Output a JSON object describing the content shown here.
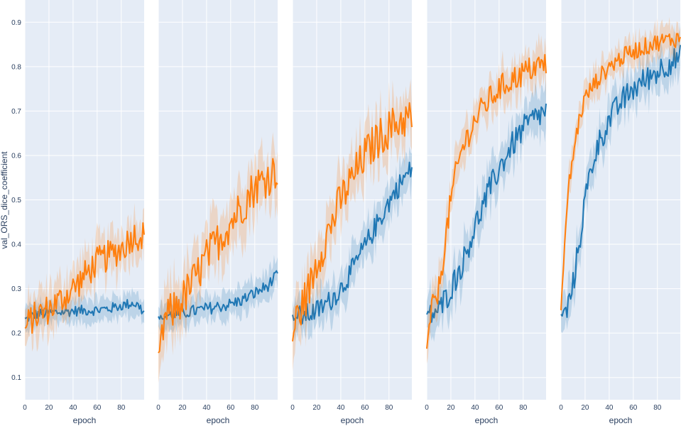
{
  "chart_data": {
    "type": "line",
    "ylabel": "val_ORS_dice_coefficient",
    "ylim": [
      0.05,
      0.95
    ],
    "yticks": [
      0.1,
      0.2,
      0.3,
      0.4,
      0.5,
      0.6,
      0.7,
      0.8,
      0.9
    ],
    "xlim": [
      0,
      99
    ],
    "xticks": [
      0,
      20,
      40,
      60,
      80
    ],
    "grid": true,
    "colors": {
      "plot_bg": "#e5ecf6",
      "grid": "#ffffff",
      "blue": "#1f77b4",
      "orange": "#ff7f0e"
    },
    "panels": [
      {
        "xlabel": "epoch",
        "series": [
          {
            "color": "#1f77b4",
            "band": 0.025,
            "noise": 0.012,
            "points": [
              [
                0,
                0.232
              ],
              [
                10,
                0.243
              ],
              [
                20,
                0.245
              ],
              [
                40,
                0.25
              ],
              [
                60,
                0.252
              ],
              [
                70,
                0.255
              ],
              [
                80,
                0.262
              ],
              [
                90,
                0.268
              ],
              [
                95,
                0.26
              ],
              [
                99,
                0.245
              ]
            ]
          },
          {
            "color": "#ff7f0e",
            "band": 0.045,
            "noise": 0.035,
            "points": [
              [
                0,
                0.21
              ],
              [
                5,
                0.23
              ],
              [
                10,
                0.24
              ],
              [
                20,
                0.255
              ],
              [
                30,
                0.275
              ],
              [
                40,
                0.3
              ],
              [
                50,
                0.33
              ],
              [
                60,
                0.36
              ],
              [
                70,
                0.375
              ],
              [
                80,
                0.39
              ],
              [
                90,
                0.42
              ],
              [
                99,
                0.42
              ]
            ]
          }
        ]
      },
      {
        "xlabel": "epoch",
        "series": [
          {
            "color": "#1f77b4",
            "band": 0.03,
            "noise": 0.014,
            "points": [
              [
                0,
                0.235
              ],
              [
                10,
                0.24
              ],
              [
                20,
                0.245
              ],
              [
                40,
                0.255
              ],
              [
                60,
                0.265
              ],
              [
                70,
                0.275
              ],
              [
                80,
                0.29
              ],
              [
                90,
                0.305
              ],
              [
                99,
                0.33
              ]
            ]
          },
          {
            "color": "#ff7f0e",
            "band": 0.06,
            "noise": 0.045,
            "points": [
              [
                0,
                0.145
              ],
              [
                3,
                0.2
              ],
              [
                6,
                0.235
              ],
              [
                10,
                0.245
              ],
              [
                20,
                0.275
              ],
              [
                30,
                0.32
              ],
              [
                40,
                0.37
              ],
              [
                50,
                0.41
              ],
              [
                60,
                0.45
              ],
              [
                70,
                0.49
              ],
              [
                80,
                0.53
              ],
              [
                90,
                0.55
              ],
              [
                99,
                0.57
              ]
            ]
          }
        ]
      },
      {
        "xlabel": "epoch",
        "series": [
          {
            "color": "#1f77b4",
            "band": 0.04,
            "noise": 0.025,
            "points": [
              [
                0,
                0.235
              ],
              [
                10,
                0.24
              ],
              [
                20,
                0.25
              ],
              [
                30,
                0.27
              ],
              [
                40,
                0.3
              ],
              [
                50,
                0.345
              ],
              [
                60,
                0.395
              ],
              [
                70,
                0.445
              ],
              [
                80,
                0.495
              ],
              [
                90,
                0.54
              ],
              [
                99,
                0.57
              ]
            ]
          },
          {
            "color": "#ff7f0e",
            "band": 0.055,
            "noise": 0.045,
            "points": [
              [
                0,
                0.185
              ],
              [
                3,
                0.23
              ],
              [
                8,
                0.26
              ],
              [
                15,
                0.31
              ],
              [
                20,
                0.36
              ],
              [
                30,
                0.43
              ],
              [
                40,
                0.5
              ],
              [
                50,
                0.55
              ],
              [
                60,
                0.6
              ],
              [
                70,
                0.635
              ],
              [
                80,
                0.66
              ],
              [
                90,
                0.68
              ],
              [
                99,
                0.685
              ]
            ]
          }
        ]
      },
      {
        "xlabel": "epoch",
        "series": [
          {
            "color": "#1f77b4",
            "band": 0.045,
            "noise": 0.03,
            "points": [
              [
                0,
                0.24
              ],
              [
                10,
                0.25
              ],
              [
                20,
                0.3
              ],
              [
                30,
                0.36
              ],
              [
                40,
                0.44
              ],
              [
                50,
                0.51
              ],
              [
                60,
                0.57
              ],
              [
                70,
                0.62
              ],
              [
                80,
                0.66
              ],
              [
                90,
                0.685
              ],
              [
                99,
                0.7
              ]
            ]
          },
          {
            "color": "#ff7f0e",
            "band": 0.04,
            "noise": 0.03,
            "points": [
              [
                0,
                0.16
              ],
              [
                3,
                0.24
              ],
              [
                10,
                0.3
              ],
              [
                15,
                0.4
              ],
              [
                20,
                0.5
              ],
              [
                25,
                0.57
              ],
              [
                30,
                0.62
              ],
              [
                40,
                0.68
              ],
              [
                50,
                0.72
              ],
              [
                60,
                0.75
              ],
              [
                70,
                0.77
              ],
              [
                80,
                0.785
              ],
              [
                90,
                0.8
              ],
              [
                99,
                0.805
              ]
            ]
          }
        ]
      },
      {
        "xlabel": "epoch",
        "series": [
          {
            "color": "#1f77b4",
            "band": 0.04,
            "noise": 0.03,
            "points": [
              [
                0,
                0.24
              ],
              [
                5,
                0.25
              ],
              [
                10,
                0.31
              ],
              [
                15,
                0.4
              ],
              [
                20,
                0.5
              ],
              [
                25,
                0.57
              ],
              [
                30,
                0.62
              ],
              [
                40,
                0.68
              ],
              [
                50,
                0.72
              ],
              [
                60,
                0.75
              ],
              [
                70,
                0.77
              ],
              [
                80,
                0.79
              ],
              [
                90,
                0.81
              ],
              [
                99,
                0.82
              ]
            ]
          },
          {
            "color": "#ff7f0e",
            "band": 0.03,
            "noise": 0.02,
            "points": [
              [
                0,
                0.25
              ],
              [
                3,
                0.4
              ],
              [
                6,
                0.52
              ],
              [
                10,
                0.6
              ],
              [
                15,
                0.68
              ],
              [
                20,
                0.73
              ],
              [
                30,
                0.77
              ],
              [
                40,
                0.8
              ],
              [
                50,
                0.82
              ],
              [
                60,
                0.835
              ],
              [
                70,
                0.845
              ],
              [
                80,
                0.855
              ],
              [
                90,
                0.86
              ],
              [
                99,
                0.865
              ]
            ]
          }
        ]
      }
    ]
  }
}
